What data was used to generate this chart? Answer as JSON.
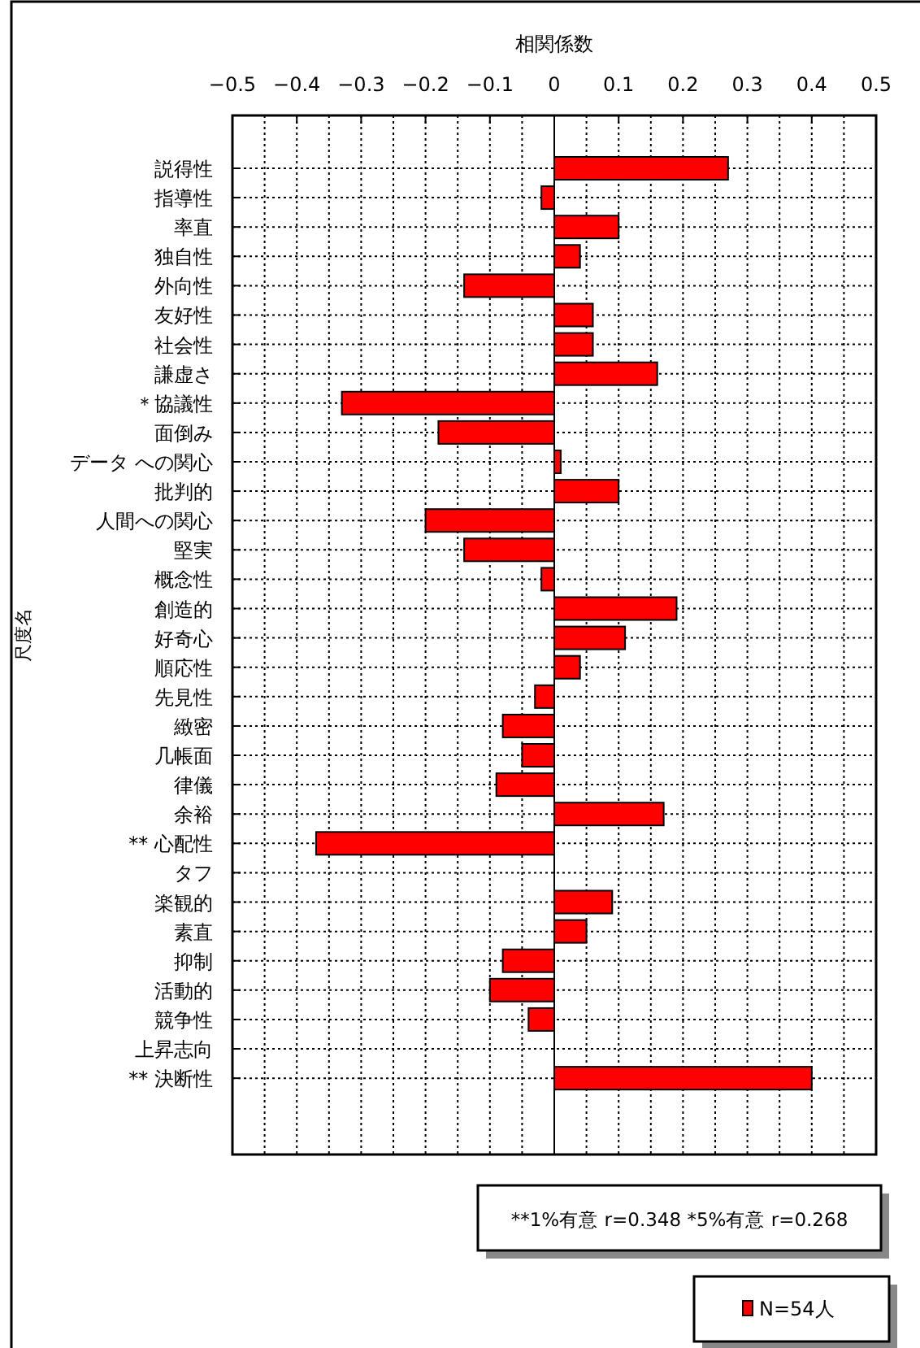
{
  "chart_data": {
    "type": "bar",
    "orientation": "horizontal",
    "xlabel": "相関係数",
    "ylabel": "尺度名",
    "categories": [
      "説得性",
      "指導性",
      "率直",
      "独自性",
      "外向性",
      "友好性",
      "社会性",
      "謙虚さ",
      "＊協議性",
      "面倒み",
      "データ への関心",
      "批判的",
      "人間への関心",
      "堅実",
      "概念性",
      "創造的",
      "好奇心",
      "順応性",
      "先見性",
      "緻密",
      "几帳面",
      "律儀",
      "余裕",
      "** 心配性",
      "タフ",
      "楽観的",
      "素直",
      "抑制",
      "活動的",
      "競争性",
      "上昇志向",
      "** 決断性"
    ],
    "series": [
      {
        "name": "N=54人",
        "color": "#ff0000",
        "values": [
          0.27,
          -0.02,
          0.1,
          0.04,
          -0.14,
          0.06,
          0.06,
          0.16,
          -0.33,
          -0.18,
          0.01,
          0.1,
          -0.2,
          -0.14,
          -0.02,
          0.19,
          0.11,
          0.04,
          -0.03,
          -0.08,
          -0.05,
          -0.09,
          0.17,
          -0.37,
          0.0,
          0.09,
          0.05,
          -0.08,
          -0.1,
          -0.04,
          0.0,
          0.4
        ]
      }
    ],
    "xlim": [
      -0.5,
      0.5
    ],
    "xticks": [
      -0.5,
      {
        "value": -0.45,
        "label": null
      },
      -0.4,
      {
        "value": -0.35,
        "label": null
      },
      -0.3,
      {
        "value": -0.25,
        "label": null
      },
      -0.2,
      {
        "value": -0.15,
        "label": null
      },
      -0.1,
      {
        "value": -0.05,
        "label": null
      },
      0,
      {
        "value": 0.05,
        "label": null
      },
      0.1,
      {
        "value": 0.15,
        "label": null
      },
      0.2,
      {
        "value": 0.25,
        "label": null
      },
      0.3,
      {
        "value": 0.35,
        "label": null
      },
      0.4,
      {
        "value": 0.45,
        "label": null
      },
      0.5
    ],
    "grid": true,
    "legend": "bottom right",
    "annotations": [
      "**1%有意 r=0.348 *5%有意 r=0.268"
    ]
  }
}
